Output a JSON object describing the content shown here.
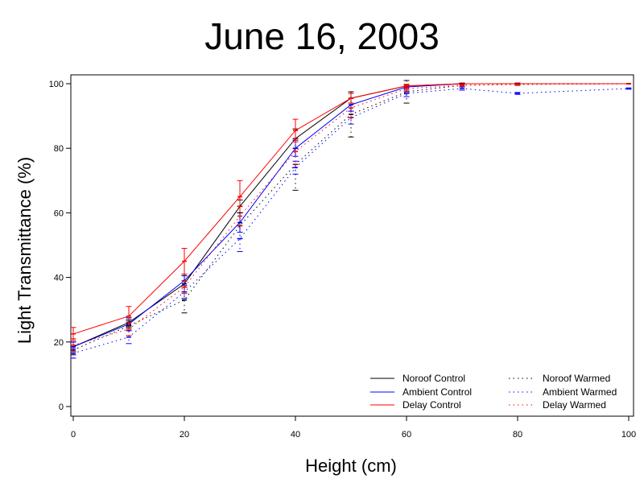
{
  "chart_data": {
    "type": "line",
    "title": "June 16, 2003",
    "xlabel": "Height (cm)",
    "ylabel": "Light Transmittance (%)",
    "xlim": [
      0,
      100
    ],
    "ylim": [
      0,
      100
    ],
    "xticks": [
      0,
      20,
      40,
      60,
      80,
      100
    ],
    "yticks": [
      0,
      20,
      40,
      60,
      80,
      100
    ],
    "grid": false,
    "legend_position": "bottom-right",
    "series": [
      {
        "name": "Noroof Control",
        "color": "#000000",
        "style": "solid",
        "x": [
          0,
          10,
          20,
          30,
          40,
          50,
          60,
          70,
          80,
          100
        ],
        "y": [
          18.5,
          26,
          38,
          62,
          83,
          95.5,
          99.3,
          100,
          100,
          100
        ],
        "err": [
          1.5,
          1.5,
          2.5,
          2,
          3,
          1.5,
          0.5,
          0.2,
          0.2,
          0.1
        ]
      },
      {
        "name": "Ambient Control",
        "color": "#0000ff",
        "style": "solid",
        "x": [
          0,
          10,
          20,
          30,
          40,
          50,
          60,
          70,
          80,
          100
        ],
        "y": [
          18.5,
          25.5,
          39,
          57,
          80,
          93.5,
          99,
          100,
          100,
          100
        ],
        "err": [
          1.5,
          1.5,
          2,
          3,
          2.5,
          2,
          0.5,
          0.2,
          0.2,
          0.1
        ]
      },
      {
        "name": "Delay Control",
        "color": "#ff0000",
        "style": "solid",
        "x": [
          0,
          10,
          20,
          30,
          40,
          50,
          60,
          70,
          80,
          100
        ],
        "y": [
          22.5,
          28,
          45,
          65,
          85.5,
          95.5,
          99.3,
          100,
          100,
          100
        ],
        "err": [
          2,
          3,
          4,
          5,
          3.5,
          1.5,
          0.5,
          0.2,
          0.2,
          0.1
        ]
      },
      {
        "name": "Noroof Warmed",
        "color": "#000000",
        "style": "dotted",
        "x": [
          0,
          10,
          20,
          30,
          40,
          50,
          60,
          70,
          80,
          100
        ],
        "y": [
          17.5,
          25,
          33,
          56,
          75,
          90.5,
          97.5,
          99.5,
          99.8,
          100
        ],
        "err": [
          1.5,
          1.5,
          4,
          4,
          8,
          7,
          3.5,
          0.5,
          0.3,
          0.1
        ]
      },
      {
        "name": "Ambient Warmed",
        "color": "#0000ff",
        "style": "dotted",
        "x": [
          0,
          10,
          20,
          30,
          40,
          50,
          60,
          70,
          80,
          100
        ],
        "y": [
          16.5,
          21.5,
          35.5,
          52,
          74,
          89.5,
          97,
          98.5,
          97,
          98.5
        ],
        "err": [
          1.5,
          2,
          2,
          4,
          2,
          2,
          1,
          0.5,
          0.3,
          0.2
        ]
      },
      {
        "name": "Delay Warmed",
        "color": "#ff0000",
        "style": "dotted",
        "x": [
          0,
          10,
          20,
          30,
          40,
          50,
          60,
          70,
          80,
          100
        ],
        "y": [
          19,
          24,
          37,
          59,
          79,
          92.5,
          98.5,
          99.5,
          99.8,
          100
        ],
        "err": [
          2,
          2,
          2,
          3,
          4,
          3,
          1,
          0.3,
          0.2,
          0.1
        ]
      }
    ]
  }
}
